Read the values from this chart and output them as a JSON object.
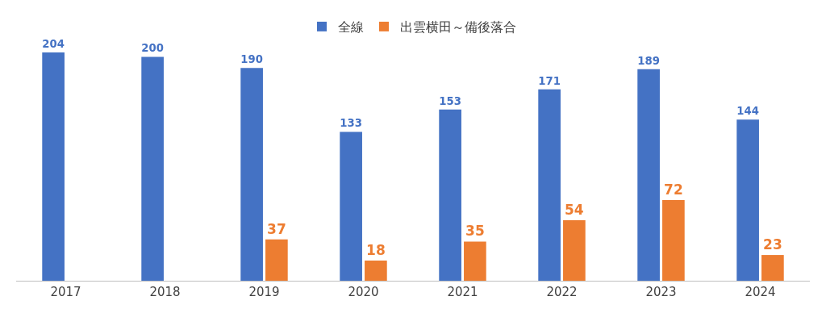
{
  "chart_data": {
    "type": "bar",
    "categories": [
      "2017",
      "2018",
      "2019",
      "2020",
      "2021",
      "2022",
      "2023",
      "2024"
    ],
    "series": [
      {
        "name": "全線",
        "color": "#4472c4",
        "values": [
          204,
          200,
          190,
          133,
          153,
          171,
          189,
          144
        ]
      },
      {
        "name": "出雲横田～備後落合",
        "color": "#ed7d31",
        "values": [
          null,
          null,
          37,
          18,
          35,
          54,
          72,
          23
        ]
      }
    ],
    "data_labels": true,
    "legend": "top"
  }
}
